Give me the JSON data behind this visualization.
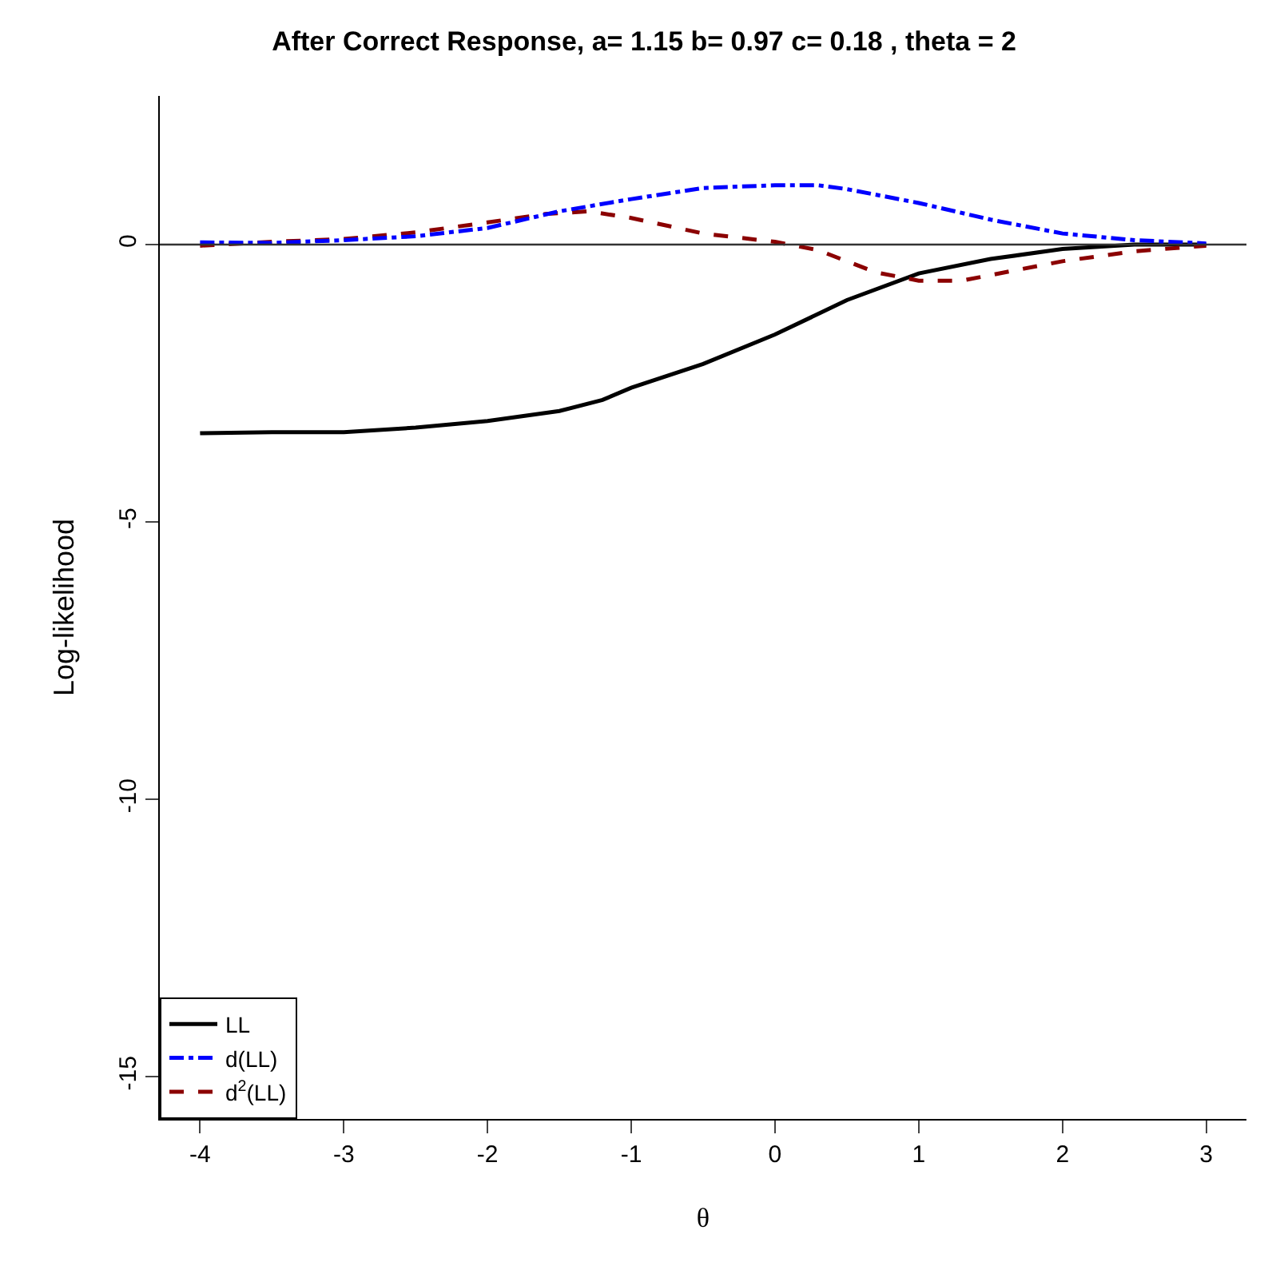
{
  "chart_data": {
    "type": "line",
    "title": "After Correct Response, a= 1.15 b= 0.97 c= 0.18 , theta = 2",
    "xlabel": "θ",
    "ylabel": "Log-likelihood",
    "xlim": [
      -4.28,
      3.28
    ],
    "ylim": [
      -15.76,
      2.68
    ],
    "xticks": [
      -4,
      -3,
      -2,
      -1,
      0,
      1,
      2,
      3
    ],
    "yticks": [
      -15,
      -10,
      -5,
      0
    ],
    "grid": false,
    "legend": "bottom left",
    "marker": "none",
    "ref_lines": [
      {
        "axis": "y",
        "value": 0,
        "color": "#333333",
        "line_style": "solid"
      }
    ],
    "series": [
      {
        "name": "LL",
        "color": "#000000",
        "line_style": "solid",
        "x": [
          -4,
          -3.5,
          -3,
          -2.5,
          -2,
          -1.5,
          -1.2,
          -1,
          -0.5,
          0,
          0.3,
          0.5,
          1,
          1.5,
          2,
          2.5,
          3
        ],
        "values": [
          -3.4,
          -3.38,
          -3.38,
          -3.3,
          -3.18,
          -3.0,
          -2.8,
          -2.58,
          -2.15,
          -1.62,
          -1.25,
          -1.0,
          -0.52,
          -0.26,
          -0.08,
          0,
          0
        ]
      },
      {
        "name": "d(LL)",
        "color": "#0000ff",
        "line_style": "dashdot",
        "x": [
          -4,
          -3.5,
          -3,
          -2.5,
          -2,
          -1.5,
          -1,
          -0.5,
          0,
          0.3,
          0.5,
          1,
          1.5,
          2,
          2.5,
          3
        ],
        "values": [
          0.04,
          0.03,
          0.08,
          0.15,
          0.3,
          0.6,
          0.82,
          1.02,
          1.07,
          1.07,
          1.0,
          0.75,
          0.45,
          0.2,
          0.08,
          0.02
        ]
      },
      {
        "name": "d$^{2}$(LL)",
        "color": "#8b0000",
        "line_style": "dashed",
        "x": [
          -4,
          -3.5,
          -3,
          -2.5,
          -2,
          -1.6,
          -1.3,
          -1,
          -0.5,
          0,
          0.3,
          0.7,
          1,
          1.3,
          1.7,
          2,
          2.5,
          3
        ],
        "values": [
          -0.02,
          0.05,
          0.1,
          0.22,
          0.4,
          0.55,
          0.6,
          0.48,
          0.2,
          0.05,
          -0.1,
          -0.5,
          -0.65,
          -0.65,
          -0.45,
          -0.3,
          -0.12,
          -0.02
        ]
      }
    ]
  }
}
